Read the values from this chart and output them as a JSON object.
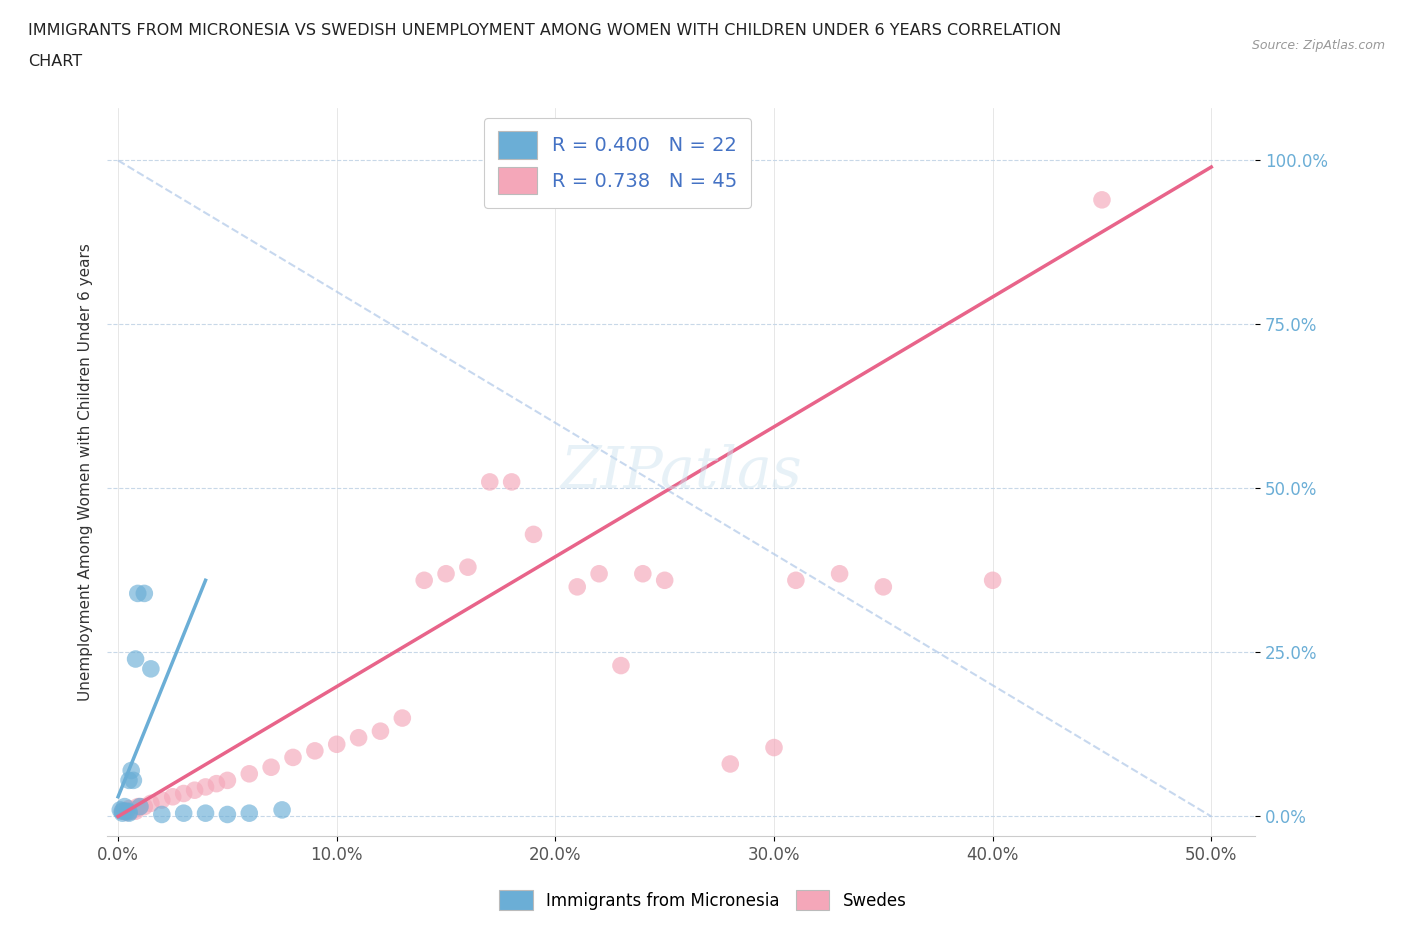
{
  "title_line1": "IMMIGRANTS FROM MICRONESIA VS SWEDISH UNEMPLOYMENT AMONG WOMEN WITH CHILDREN UNDER 6 YEARS CORRELATION",
  "title_line2": "CHART",
  "source": "Source: ZipAtlas.com",
  "ylabel": "Unemployment Among Women with Children Under 6 years",
  "xlabel_ticks": [
    "0.0%",
    "10.0%",
    "20.0%",
    "30.0%",
    "40.0%",
    "50.0%"
  ],
  "xlabel_vals": [
    0,
    10,
    20,
    30,
    40,
    50
  ],
  "ylabel_ticks": [
    "0.0%",
    "25.0%",
    "50.0%",
    "75.0%",
    "100.0%"
  ],
  "ylabel_vals": [
    0,
    25,
    50,
    75,
    100
  ],
  "xlim": [
    -0.5,
    52
  ],
  "ylim": [
    -3,
    108
  ],
  "watermark": "ZIPatlas",
  "legend_r1": "R = 0.400",
  "legend_n1": "N = 22",
  "legend_r2": "R = 0.738",
  "legend_n2": "N = 45",
  "blue_color": "#6baed6",
  "pink_color": "#f4a7b9",
  "blue_scatter": [
    [
      0.1,
      1.0
    ],
    [
      0.2,
      0.8
    ],
    [
      0.2,
      0.5
    ],
    [
      0.3,
      0.8
    ],
    [
      0.3,
      1.5
    ],
    [
      0.4,
      0.8
    ],
    [
      0.5,
      0.5
    ],
    [
      0.5,
      0.7
    ],
    [
      0.5,
      5.5
    ],
    [
      0.6,
      7.0
    ],
    [
      0.7,
      5.5
    ],
    [
      0.8,
      24.0
    ],
    [
      0.9,
      34.0
    ],
    [
      1.0,
      1.5
    ],
    [
      1.2,
      34.0
    ],
    [
      2.0,
      0.3
    ],
    [
      3.0,
      0.5
    ],
    [
      4.0,
      0.5
    ],
    [
      5.0,
      0.3
    ],
    [
      6.0,
      0.5
    ],
    [
      7.5,
      1.0
    ],
    [
      1.5,
      22.5
    ]
  ],
  "pink_scatter": [
    [
      0.2,
      0.8
    ],
    [
      0.3,
      0.8
    ],
    [
      0.4,
      0.6
    ],
    [
      0.5,
      0.8
    ],
    [
      0.5,
      1.2
    ],
    [
      0.6,
      0.8
    ],
    [
      0.7,
      1.0
    ],
    [
      0.8,
      0.8
    ],
    [
      0.9,
      1.5
    ],
    [
      1.0,
      1.5
    ],
    [
      1.2,
      1.5
    ],
    [
      1.5,
      2.0
    ],
    [
      2.0,
      2.5
    ],
    [
      2.5,
      3.0
    ],
    [
      3.0,
      3.5
    ],
    [
      3.5,
      4.0
    ],
    [
      4.0,
      4.5
    ],
    [
      4.5,
      5.0
    ],
    [
      5.0,
      5.5
    ],
    [
      6.0,
      6.5
    ],
    [
      7.0,
      7.5
    ],
    [
      8.0,
      9.0
    ],
    [
      9.0,
      10.0
    ],
    [
      10.0,
      11.0
    ],
    [
      11.0,
      12.0
    ],
    [
      12.0,
      13.0
    ],
    [
      13.0,
      15.0
    ],
    [
      14.0,
      36.0
    ],
    [
      15.0,
      37.0
    ],
    [
      16.0,
      38.0
    ],
    [
      17.0,
      51.0
    ],
    [
      18.0,
      51.0
    ],
    [
      19.0,
      43.0
    ],
    [
      21.0,
      35.0
    ],
    [
      22.0,
      37.0
    ],
    [
      23.0,
      23.0
    ],
    [
      24.0,
      37.0
    ],
    [
      25.0,
      36.0
    ],
    [
      28.0,
      8.0
    ],
    [
      30.0,
      10.5
    ],
    [
      31.0,
      36.0
    ],
    [
      33.0,
      37.0
    ],
    [
      35.0,
      35.0
    ],
    [
      40.0,
      36.0
    ],
    [
      45.0,
      94.0
    ]
  ],
  "blue_line": [
    [
      0,
      3.0
    ],
    [
      4.0,
      36.0
    ]
  ],
  "pink_line": [
    [
      0,
      0
    ],
    [
      50,
      99
    ]
  ],
  "dash_line": [
    [
      0,
      100
    ],
    [
      50,
      0
    ]
  ]
}
